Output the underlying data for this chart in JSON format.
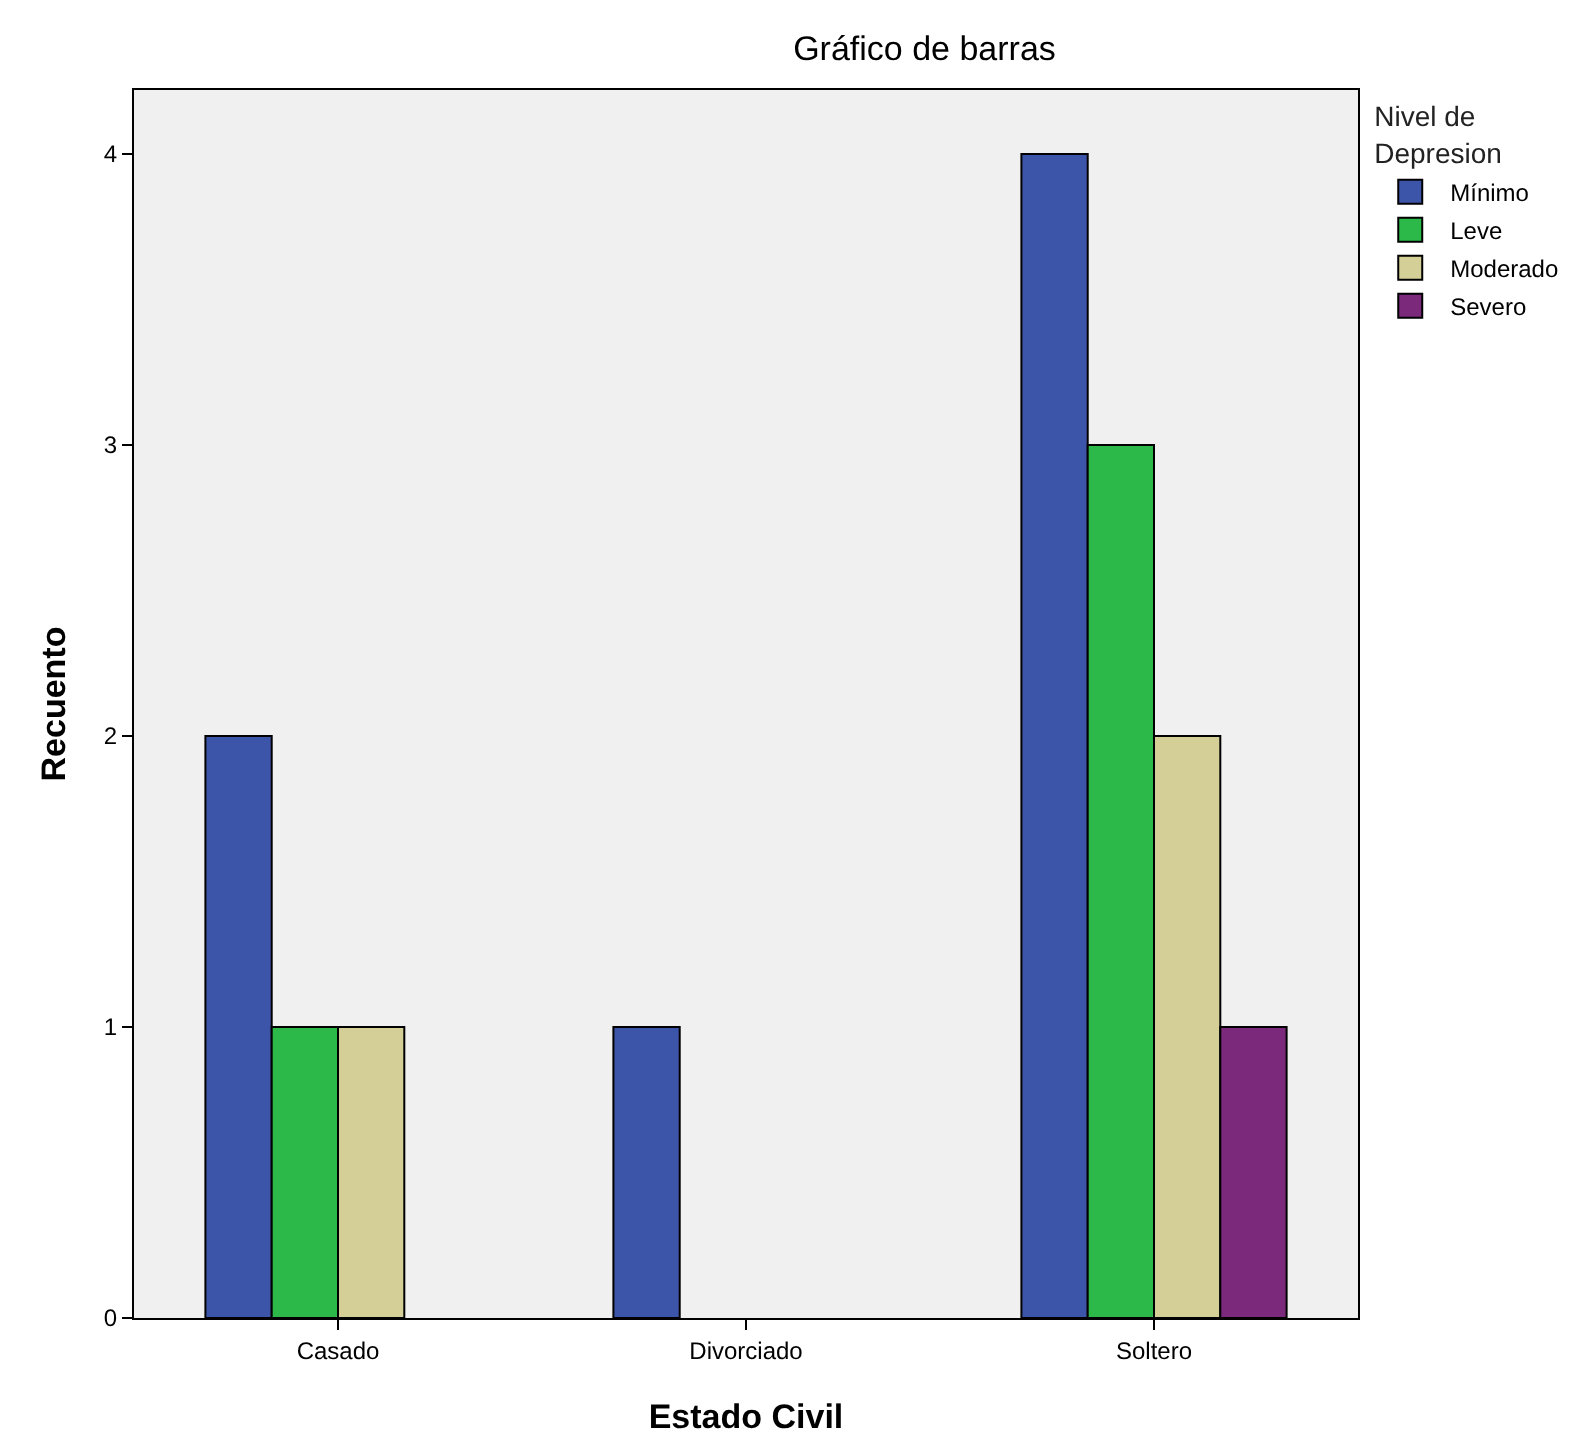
{
  "chart_data": {
    "type": "bar",
    "title": "Gráfico de barras",
    "xlabel": "Estado Civil",
    "ylabel": "Recuento",
    "legend_title": "Nivel de Depresion",
    "categories": [
      "Casado",
      "Divorciado",
      "Soltero"
    ],
    "series": [
      {
        "name": "Mínimo",
        "color": "#3d55a8",
        "values": [
          2,
          1,
          4
        ]
      },
      {
        "name": "Leve",
        "color": "#2db84a",
        "values": [
          1,
          null,
          3
        ]
      },
      {
        "name": "Moderado",
        "color": "#d4cf96",
        "values": [
          1,
          null,
          2
        ]
      },
      {
        "name": "Severo",
        "color": "#7b2a7b",
        "values": [
          null,
          null,
          1
        ]
      }
    ],
    "ylim": [
      0,
      4.22
    ],
    "yticks": [
      0,
      1,
      2,
      3,
      4
    ],
    "grid": false,
    "legend": "top right"
  }
}
